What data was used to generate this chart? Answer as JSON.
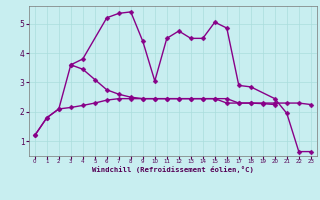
{
  "x": [
    0,
    1,
    2,
    3,
    4,
    5,
    6,
    7,
    8,
    9,
    10,
    11,
    12,
    13,
    14,
    15,
    16,
    17,
    18,
    19,
    20,
    21,
    22,
    23
  ],
  "line1": [
    1.2,
    1.8,
    2.1,
    3.6,
    3.8,
    5.2,
    5.35,
    5.4,
    4.4,
    3.05,
    4.5,
    4.75,
    4.5,
    4.5,
    5.05,
    4.85,
    2.9,
    2.85,
    2.45,
    1.95,
    0.65,
    0.65
  ],
  "line1_x": [
    0,
    1,
    2,
    3,
    4,
    6,
    7,
    8,
    9,
    10,
    11,
    12,
    13,
    14,
    15,
    16,
    17,
    18,
    20,
    21,
    22,
    23
  ],
  "line2": [
    1.2,
    1.8,
    2.1,
    2.15,
    2.22,
    2.3,
    2.4,
    2.45,
    2.45,
    2.45,
    2.45,
    2.45,
    2.45,
    2.45,
    2.45,
    2.45,
    2.3,
    2.3,
    2.3,
    2.28,
    2.25
  ],
  "line2_x": [
    0,
    1,
    2,
    3,
    4,
    5,
    6,
    7,
    8,
    9,
    10,
    11,
    12,
    13,
    14,
    15,
    16,
    17,
    18,
    19,
    20
  ],
  "line3": [
    3.6,
    3.45,
    3.1,
    2.75,
    2.6,
    2.5,
    2.45,
    2.45,
    2.45,
    2.45,
    2.45,
    2.45,
    2.45,
    2.45,
    2.3,
    2.3,
    2.3,
    2.3,
    2.3,
    2.3,
    2.25
  ],
  "line3_x": [
    3,
    4,
    5,
    6,
    7,
    8,
    9,
    10,
    11,
    12,
    13,
    14,
    15,
    16,
    17,
    18,
    19,
    20,
    21,
    22,
    23
  ],
  "line_color": "#880088",
  "bg_color": "#c8eef0",
  "grid_color": "#aadddd",
  "xlabel": "Windchill (Refroidissement éolien,°C)",
  "ylim": [
    0.5,
    5.6
  ],
  "xlim": [
    -0.5,
    23.5
  ],
  "yticks": [
    1,
    2,
    3,
    4,
    5
  ],
  "xticks": [
    0,
    1,
    2,
    3,
    4,
    5,
    6,
    7,
    8,
    9,
    10,
    11,
    12,
    13,
    14,
    15,
    16,
    17,
    18,
    19,
    20,
    21,
    22,
    23
  ],
  "markersize": 2.5,
  "linewidth": 1.0
}
